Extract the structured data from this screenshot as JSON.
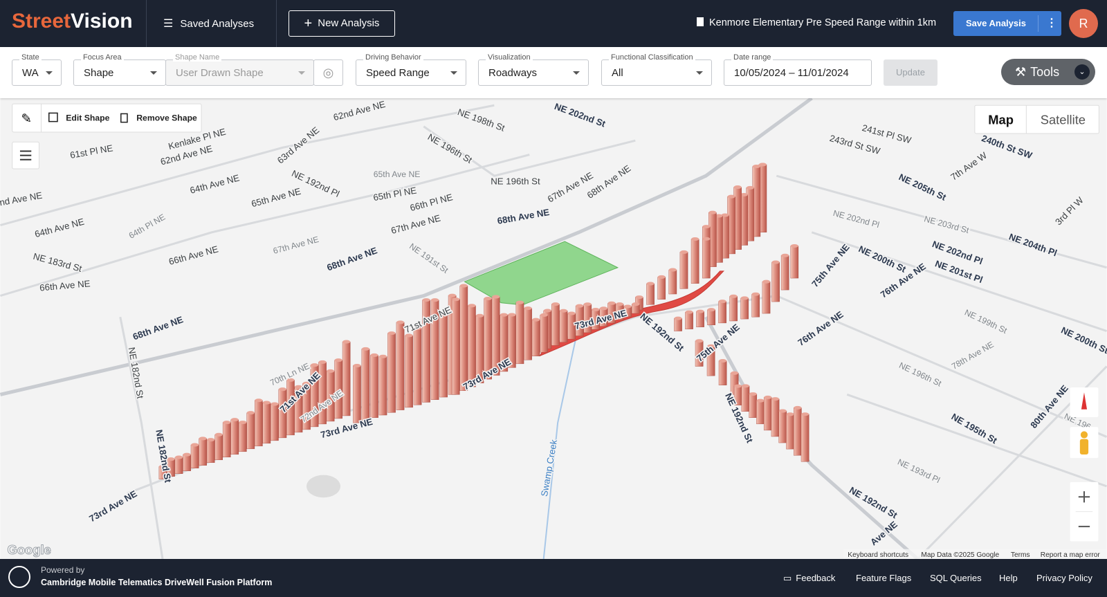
{
  "header": {
    "logo_a": "Street",
    "logo_b": "Vision",
    "saved": "Saved Analyses",
    "new": "New Analysis",
    "analysis_name": "Kenmore Elementary Pre Speed Range within 1km",
    "save": "Save Analysis",
    "avatar": "R"
  },
  "filters": [
    {
      "label": "State",
      "value": "WA"
    },
    {
      "label": "Focus Area",
      "value": "Shape"
    },
    {
      "label": "Shape Name",
      "value": "User Drawn Shape"
    },
    {
      "label": "Driving Behavior",
      "value": "Speed Range"
    },
    {
      "label": "Visualization",
      "value": "Roadways"
    },
    {
      "label": "Functional Classification",
      "value": "All"
    },
    {
      "label": "Date range",
      "value": "10/05/2024 – 11/01/2024"
    }
  ],
  "update": "Update",
  "tools": "Tools",
  "map": {
    "edit": "Edit Shape",
    "remove": "Remove Shape",
    "map_types": [
      "Map",
      "Satellite"
    ],
    "road_labels": [
      "62nd Ave NE",
      "NE 198th St",
      "NE 202nd St",
      "Kenlake Pl NE",
      "61st Pl NE",
      "62nd Ave NE",
      "63rd Ave NE",
      "NE 196th St",
      "NE 192nd Pl",
      "65th Ave NE",
      "NE 196th St",
      "67th Ave NE",
      "68th Ave NE",
      "64th Ave NE",
      "65th Pl NE",
      "65th Ave NE",
      "66th Pl NE",
      "nd Ave NE",
      "64th Ave NE",
      "64th Pl NE",
      "67th Ave NE",
      "68th Ave NE",
      "NE 183rd St",
      "66th Ave NE",
      "67th Ave NE",
      "NE 191st St",
      "68th Ave NE",
      "66th Ave NE",
      "68th Ave NE",
      "71st Ave NE",
      "73rd Ave NE",
      "NE 192nd St",
      "75th Ave NE",
      "70th Ln NE",
      "NE 182nd St",
      "71st Ave NE",
      "72nd Ave NE",
      "73rd Ave NE",
      "73rd Ave NE",
      "NE 182nd St",
      "73rd Ave NE",
      "Swamp Creek",
      "NE 192nd St",
      "NE 205th St",
      "7th Ave W",
      "240th St SW",
      "241st Pl SW",
      "243rd St SW",
      "NE 202nd Pl",
      "NE 203rd St",
      "3rd Pl W",
      "NE 204th Pl",
      "NE 202nd Pl",
      "NE 200th St",
      "NE 201st Pl",
      "75th Ave NE",
      "76th Ave NE",
      "NE 199th St",
      "76th Ave NE",
      "NE 200th St",
      "78th Ave NE",
      "NE 196th St",
      "NE 195th St",
      "80th Ave NE",
      "NE 196",
      "NE 193rd Pl",
      "NE 192nd St",
      "Ave NE"
    ],
    "attribution": [
      "Keyboard shortcuts",
      "Map Data ©2025 Google",
      "Terms",
      "Report a map error"
    ],
    "google": "Google"
  },
  "footer": {
    "powered": "Powered by",
    "platform": "Cambridge Mobile Telematics DriveWell Fusion Platform",
    "links": [
      "Feedback",
      "Feature Flags",
      "SQL Queries",
      "Help",
      "Privacy Policy"
    ]
  }
}
